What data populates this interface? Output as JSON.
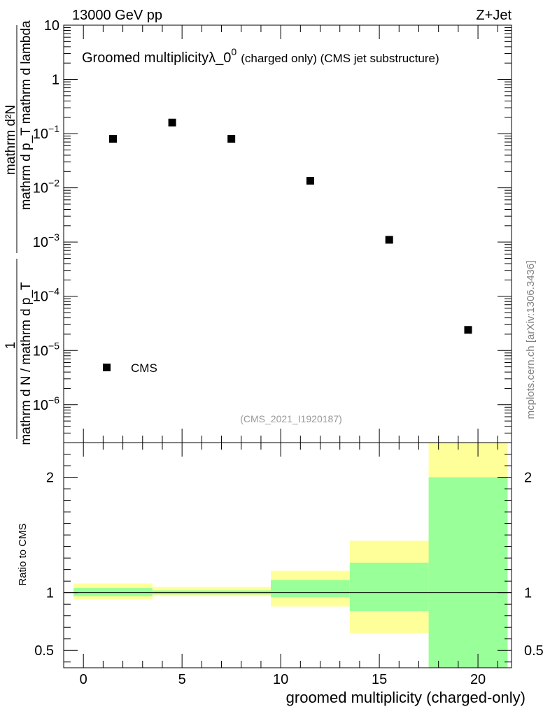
{
  "header": {
    "left": "13000 GeV pp",
    "right": "Z+Jet"
  },
  "main_panel": {
    "title_main": "Groomed multiplicity",
    "title_lambda": "λ_0",
    "title_sup": "0",
    "title_small": "(charged only) (CMS jet substructure)",
    "ylabel_num": "mathrm d²N",
    "ylabel_den": "mathrm d p_T mathrm d lambda",
    "ylabel_prefix": "1",
    "ylabel_prefix_den": "mathrm d N / mathrm d p_T",
    "legend_label": "CMS",
    "analysis_id": "(CMS_2021_I1920187)",
    "side_label": "mcplots.cern.ch [arXiv:1306.3436]"
  },
  "ratio_panel": {
    "ylabel": "Ratio to CMS"
  },
  "xlabel": "groomed multiplicity (charged-only)",
  "colors": {
    "data_marker": "#000000",
    "band_inner": "#99ff99",
    "band_outer": "#ffff99"
  },
  "chart_data": [
    {
      "type": "scatter",
      "panel": "main",
      "yscale": "log",
      "ylim": [
        2e-07,
        10
      ],
      "xlim": [
        -1,
        21.7
      ],
      "x_ticks": [
        0,
        5,
        10,
        15,
        20
      ],
      "y_ticks": [
        "10^-6",
        "10^-5",
        "10^-4",
        "10^-3",
        "10^-2",
        "10^-1",
        "1",
        "10"
      ],
      "series": [
        {
          "name": "CMS",
          "x": [
            1.5,
            4.5,
            7.5,
            11.5,
            15.5,
            19.5
          ],
          "y": [
            0.08,
            0.16,
            0.08,
            0.0135,
            0.0011,
            2.4e-05
          ]
        }
      ]
    },
    {
      "type": "area",
      "panel": "ratio",
      "ylim": [
        0.35,
        2.3
      ],
      "xlim": [
        -1,
        21.7
      ],
      "y_ticks": [
        0.5,
        1,
        2
      ],
      "bins": [
        {
          "x_low": -0.5,
          "x_high": 3.5,
          "inner": [
            0.97,
            1.04
          ],
          "outer": [
            0.94,
            1.08
          ]
        },
        {
          "x_low": 3.5,
          "x_high": 9.5,
          "inner": [
            0.985,
            1.02
          ],
          "outer": [
            0.97,
            1.05
          ]
        },
        {
          "x_low": 9.5,
          "x_high": 13.5,
          "inner": [
            0.96,
            1.11
          ],
          "outer": [
            0.88,
            1.19
          ]
        },
        {
          "x_low": 13.5,
          "x_high": 17.5,
          "inner": [
            0.84,
            1.26
          ],
          "outer": [
            0.65,
            1.45
          ]
        },
        {
          "x_low": 17.5,
          "x_high": 21.5,
          "inner": [
            0.35,
            2.0
          ],
          "outer": [
            0.35,
            2.3
          ]
        }
      ],
      "reference_line": 1
    }
  ]
}
